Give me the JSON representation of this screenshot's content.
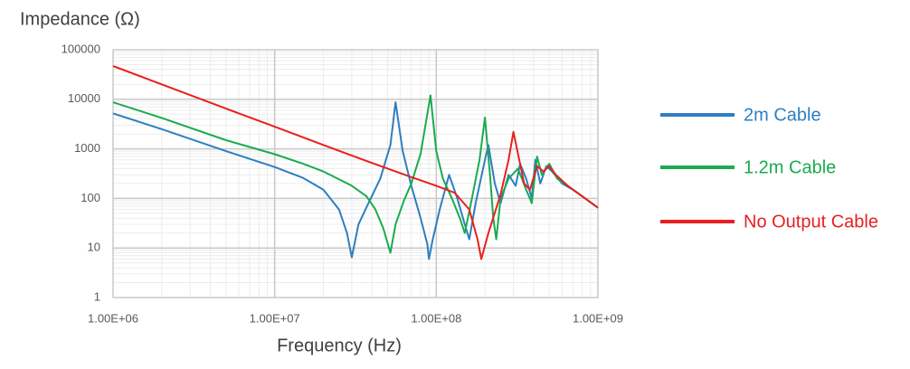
{
  "chart_data": {
    "type": "line",
    "y_axis_label": "Impedance (Ω)",
    "x_axis_label": "Frequency (Hz)",
    "x_log": true,
    "y_log": true,
    "grid": true,
    "minor_grid": true,
    "legend_position": "right",
    "xlim": [
      1000000,
      1000000000
    ],
    "ylim": [
      1,
      100000
    ],
    "xticks": [
      {
        "value": 1000000,
        "label": "1.00E+06"
      },
      {
        "value": 10000000,
        "label": "1.00E+07"
      },
      {
        "value": 100000000,
        "label": "1.00E+08"
      },
      {
        "value": 1000000000,
        "label": "1.00E+09"
      }
    ],
    "yticks": [
      1,
      10,
      100,
      1000,
      10000,
      100000
    ],
    "series": [
      {
        "name": "2m Cable",
        "color": "#2e7ec1",
        "x": [
          1000000,
          2000000,
          5000000,
          10000000,
          15000000,
          20000000,
          25000000,
          28000000,
          30000000,
          33000000,
          38000000,
          45000000,
          52000000,
          56000000,
          62000000,
          70000000,
          80000000,
          88000000,
          90000000,
          95000000,
          105000000,
          120000000,
          135000000,
          150000000,
          160000000,
          175000000,
          200000000,
          210000000,
          230000000,
          250000000,
          280000000,
          310000000,
          330000000,
          360000000,
          390000000,
          410000000,
          440000000,
          480000000,
          520000000,
          600000000,
          700000000,
          800000000,
          1000000000
        ],
        "values": [
          5200,
          2500,
          900,
          430,
          260,
          150,
          60,
          20,
          6.5,
          30,
          80,
          250,
          1200,
          8700,
          900,
          180,
          40,
          12,
          6,
          15,
          60,
          300,
          100,
          30,
          15,
          80,
          600,
          1200,
          200,
          80,
          300,
          180,
          500,
          250,
          100,
          600,
          200,
          450,
          350,
          200,
          150,
          110,
          65
        ]
      },
      {
        "name": "1.2m Cable",
        "color": "#1aab4e",
        "x": [
          1000000,
          2000000,
          5000000,
          10000000,
          15000000,
          20000000,
          30000000,
          37000000,
          42000000,
          47000000,
          52000000,
          56000000,
          63000000,
          70000000,
          80000000,
          92000000,
          100000000,
          110000000,
          125000000,
          140000000,
          150000000,
          165000000,
          185000000,
          200000000,
          215000000,
          225000000,
          235000000,
          250000000,
          280000000,
          320000000,
          360000000,
          390000000,
          420000000,
          450000000,
          500000000,
          560000000,
          650000000,
          800000000,
          1000000000
        ],
        "values": [
          8700,
          4200,
          1500,
          780,
          500,
          350,
          180,
          110,
          60,
          25,
          8,
          30,
          90,
          200,
          800,
          12000,
          900,
          250,
          100,
          40,
          20,
          90,
          600,
          4300,
          300,
          40,
          15,
          100,
          250,
          400,
          150,
          80,
          700,
          300,
          500,
          250,
          180,
          110,
          65
        ]
      },
      {
        "name": "No Output Cable",
        "color": "#e8201f",
        "x": [
          1000000,
          2000000,
          5000000,
          10000000,
          20000000,
          40000000,
          70000000,
          100000000,
          130000000,
          160000000,
          180000000,
          190000000,
          210000000,
          250000000,
          280000000,
          300000000,
          320000000,
          350000000,
          380000000,
          420000000,
          460000000,
          500000000,
          550000000,
          650000000,
          800000000,
          1000000000
        ],
        "values": [
          47000,
          20000,
          6500,
          2800,
          1200,
          520,
          270,
          180,
          130,
          60,
          15,
          6,
          20,
          120,
          600,
          2200,
          800,
          200,
          150,
          450,
          350,
          450,
          300,
          180,
          110,
          65
        ]
      }
    ]
  }
}
